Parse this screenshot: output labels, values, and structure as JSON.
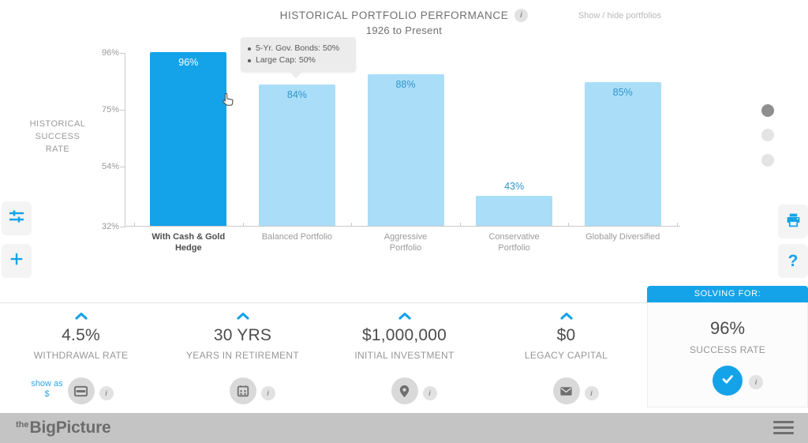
{
  "header": {
    "title": "HISTORICAL PORTFOLIO PERFORMANCE",
    "subtitle": "1926 to Present",
    "show_hide_label": "Show / hide portfolios",
    "info_glyph": "i"
  },
  "chart_data": {
    "type": "bar",
    "title": "HISTORICAL PORTFOLIO PERFORMANCE",
    "subtitle": "1926 to Present",
    "ylabel": "HISTORICAL SUCCESS RATE",
    "categories": [
      "With Cash & Gold Hedge",
      "Balanced Portfolio",
      "Aggressive Portfolio",
      "Conservative Portfolio",
      "Globally Diversified"
    ],
    "category_labels": [
      "With Cash & Gold\nHedge",
      "Balanced Portfolio",
      "Aggressive\nPortfolio",
      "Conservative\nPortfolio",
      "Globally Diversified"
    ],
    "values": [
      96,
      84,
      88,
      43,
      85
    ],
    "value_labels": [
      "96%",
      "84%",
      "88%",
      "43%",
      "85%"
    ],
    "selected_index": 0,
    "y_ticks": [
      {
        "label": "96%",
        "value": 96
      },
      {
        "label": "75%",
        "value": 75
      },
      {
        "label": "54%",
        "value": 54
      },
      {
        "label": "32%",
        "value": 32
      }
    ],
    "ylim": [
      32,
      96
    ],
    "grid": false,
    "legend": false,
    "bar_color_selected": "#14a3e8",
    "bar_color": "#aadef8",
    "bar_label_color": "#3093cc",
    "bar_label_color_selected": "#ffffff"
  },
  "tooltip": {
    "items": [
      "5-Yr. Gov. Bonds: 50%",
      "Large Cap: 50%"
    ]
  },
  "controls": [
    {
      "value": "4.5%",
      "label": "WITHDRAWAL RATE",
      "icon": "card",
      "extra_link": "show as $",
      "info_glyph": "i"
    },
    {
      "value": "30 YRS",
      "label": "YEARS IN RETIREMENT",
      "icon": "calendar",
      "info_glyph": "i"
    },
    {
      "value": "$1,000,000",
      "label": "INITIAL INVESTMENT",
      "icon": "pin",
      "info_glyph": "i"
    },
    {
      "value": "$0",
      "label": "LEGACY CAPITAL",
      "icon": "envelope",
      "info_glyph": "i"
    }
  ],
  "solving": {
    "header": "SOLVING FOR:",
    "value": "96%",
    "label": "SUCCESS RATE",
    "info_glyph": "i"
  },
  "side_tools": {
    "help_glyph": "?"
  },
  "footer": {
    "logo_prefix": "the",
    "logo_main": "BigPicture"
  },
  "colors": {
    "accent": "#14a3e8",
    "bar_light": "#aadef8",
    "footer_bar": "#c4c4c4",
    "tooltip_bg": "#ececec"
  }
}
